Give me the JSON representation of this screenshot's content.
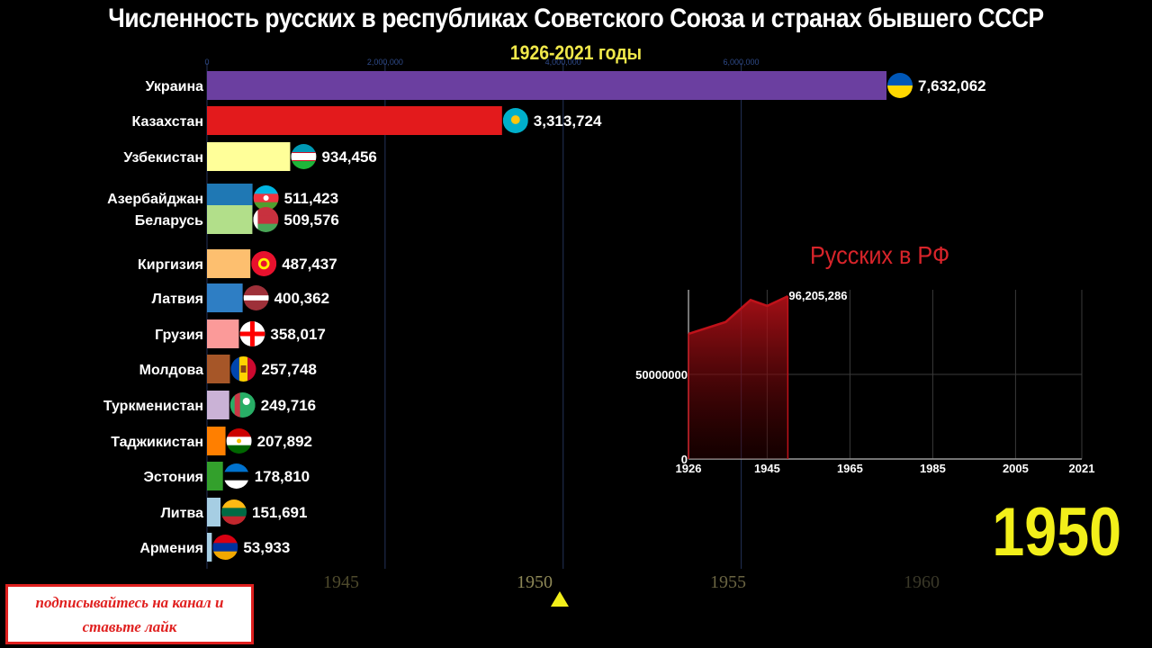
{
  "title": "Численность русских в республиках Советского Союза и странах бывшего СССР",
  "subtitle": "1926-2021 годы",
  "current_year": "1950",
  "rf_title": "Русских в РФ",
  "banner": {
    "line1": "подписывайтесь на канал и",
    "line2": "ставьте лайк"
  },
  "timeline": {
    "years": [
      "1945",
      "1950",
      "1955",
      "1960"
    ],
    "current": 1950.65
  },
  "chart_data": [
    {
      "type": "bar",
      "title": "Численность русских в республиках Советского Союза и странах бывшего СССР",
      "subtitle": "1926-2021 годы",
      "xlim": [
        0,
        7632062
      ],
      "x_ticks": [
        {
          "value": 0,
          "label": "0"
        },
        {
          "value": 2000000,
          "label": "2,000,000"
        },
        {
          "value": 4000000,
          "label": "4,000,000"
        },
        {
          "value": 6000000,
          "label": "6,000,000"
        }
      ],
      "bars": [
        {
          "name": "Украина",
          "value": 7632062,
          "label": "7,632,062",
          "color": "#6b3fa0",
          "flag": "ukraine-flag"
        },
        {
          "name": "Казахстан",
          "value": 3313724,
          "label": "3,313,724",
          "color": "#e31a1c",
          "flag": "kazakhstan-flag"
        },
        {
          "name": "Узбекистан",
          "value": 934456,
          "label": "934,456",
          "color": "#ffff99",
          "flag": "uzbekistan-flag"
        },
        {
          "name": "Азербайджан",
          "value": 511423,
          "label": "511,423",
          "color": "#1f78b4",
          "flag": "azerbaijan-flag"
        },
        {
          "name": "Беларусь",
          "value": 509576,
          "label": "509,576",
          "color": "#b2df8a",
          "flag": "belarus-flag"
        },
        {
          "name": "Киргизия",
          "value": 487437,
          "label": "487,437",
          "color": "#fdbf6f",
          "flag": "kyrgyzstan-flag"
        },
        {
          "name": "Латвия",
          "value": 400362,
          "label": "400,362",
          "color": "#2e7ec4",
          "flag": "latvia-flag"
        },
        {
          "name": "Грузия",
          "value": 358017,
          "label": "358,017",
          "color": "#fb9a99",
          "flag": "georgia-flag"
        },
        {
          "name": "Молдова",
          "value": 257748,
          "label": "257,748",
          "color": "#a65628",
          "flag": "moldova-flag"
        },
        {
          "name": "Туркменистан",
          "value": 249716,
          "label": "249,716",
          "color": "#cab2d6",
          "flag": "turkmenistan-flag"
        },
        {
          "name": "Таджикистан",
          "value": 207892,
          "label": "207,892",
          "color": "#ff7f00",
          "flag": "tajikistan-flag"
        },
        {
          "name": "Эстония",
          "value": 178810,
          "label": "178,810",
          "color": "#33a02c",
          "flag": "estonia-flag"
        },
        {
          "name": "Литва",
          "value": 151691,
          "label": "151,691",
          "color": "#a6cee3",
          "flag": "lithuania-flag"
        },
        {
          "name": "Армения",
          "value": 53933,
          "label": "53,933",
          "color": "#a6cee3",
          "flag": "armenia-flag"
        }
      ]
    },
    {
      "type": "area",
      "title": "Русских в РФ",
      "x": [
        1926,
        1935,
        1941,
        1945,
        1950
      ],
      "y": [
        74000000,
        81000000,
        94000000,
        90500000,
        96205286
      ],
      "end_label": "96,205,286",
      "xlim": [
        1926,
        2021
      ],
      "ylim": [
        0,
        100000000
      ],
      "x_ticks": [
        "1926",
        "1945",
        "1965",
        "1985",
        "2005",
        "2021"
      ],
      "y_ticks": [
        {
          "value": 0,
          "label": "0"
        },
        {
          "value": 50000000,
          "label": "50000000"
        }
      ],
      "color": "#c0121a"
    }
  ]
}
